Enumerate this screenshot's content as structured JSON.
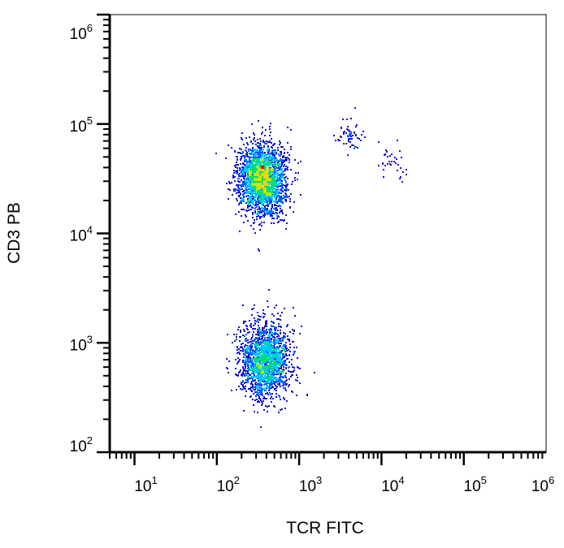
{
  "chart_data": {
    "type": "scatter",
    "title": "",
    "xlabel": "TCR FITC",
    "ylabel": "CD3 PB",
    "x_scale": "log",
    "y_scale": "log",
    "xlim": [
      5,
      1000000
    ],
    "ylim": [
      100,
      1000000
    ],
    "x_ticks": [
      {
        "base": "10",
        "exp": "1",
        "value": 10
      },
      {
        "base": "10",
        "exp": "2",
        "value": 100
      },
      {
        "base": "10",
        "exp": "3",
        "value": 1000
      },
      {
        "base": "10",
        "exp": "4",
        "value": 10000
      },
      {
        "base": "10",
        "exp": "5",
        "value": 100000
      },
      {
        "base": "10",
        "exp": "6",
        "value": 1000000
      }
    ],
    "y_ticks": [
      {
        "base": "10",
        "exp": "2",
        "value": 100
      },
      {
        "base": "10",
        "exp": "3",
        "value": 1000
      },
      {
        "base": "10",
        "exp": "4",
        "value": 10000
      },
      {
        "base": "10",
        "exp": "5",
        "value": 100000
      },
      {
        "base": "10",
        "exp": "6",
        "value": 1000000
      }
    ],
    "grid": false,
    "legend": "none",
    "density_coloring": "blue-cyan-green-yellow-red (low to high)",
    "populations": [
      {
        "center_x": 350,
        "center_y": 32000,
        "spread_log_x": 0.14,
        "spread_log_y": 0.16,
        "events": 2600
      },
      {
        "center_x": 380,
        "center_y": 700,
        "spread_log_x": 0.15,
        "spread_log_y": 0.17,
        "events": 1900
      },
      {
        "center_x": 4000,
        "center_y": 80000,
        "spread_log_x": 0.09,
        "spread_log_y": 0.07,
        "events": 60
      },
      {
        "center_x": 14000,
        "center_y": 45000,
        "spread_log_x": 0.1,
        "spread_log_y": 0.1,
        "events": 35
      }
    ]
  }
}
